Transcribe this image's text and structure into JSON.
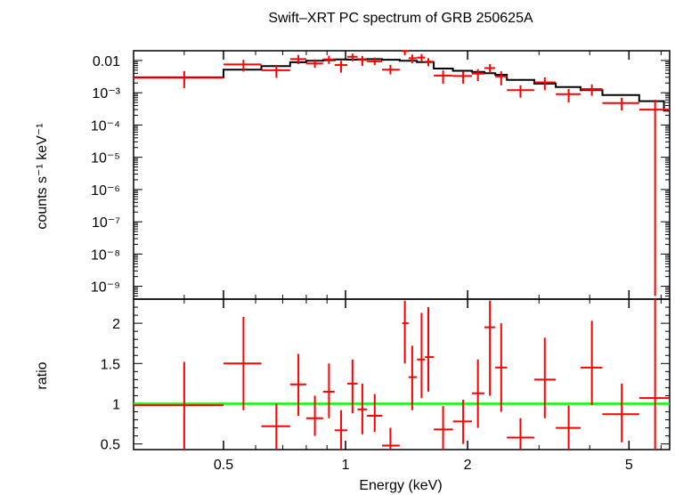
{
  "chart_data": [
    {
      "type": "scatter",
      "panel": "spectrum",
      "title": "Swift–XRT PC spectrum of GRB 250625A",
      "xlabel": "",
      "ylabel": "counts s⁻¹ keV⁻¹",
      "x_scale": "log",
      "y_scale": "log",
      "xlim": [
        0.3,
        6.3
      ],
      "ylim": [
        4e-10,
        0.02
      ],
      "y_tick_labels": [
        {
          "value": 0.01,
          "label": "0.01"
        },
        {
          "value": 0.001,
          "label": "10⁻³"
        },
        {
          "value": 0.0001,
          "label": "10⁻⁴"
        },
        {
          "value": 1e-05,
          "label": "10⁻⁵"
        },
        {
          "value": 1e-06,
          "label": "10⁻⁶"
        },
        {
          "value": 1e-07,
          "label": "10⁻⁷"
        },
        {
          "value": 1e-08,
          "label": "10⁻⁸"
        },
        {
          "value": 1e-09,
          "label": "10⁻⁹"
        }
      ],
      "series": [
        {
          "color": "#ff0000",
          "points": [
            {
              "x": 0.4,
              "xlo": 0.3,
              "xhi": 0.5,
              "y": 0.0029,
              "ylo": 0.0014,
              "yhi": 0.0047
            },
            {
              "x": 0.56,
              "xlo": 0.5,
              "xhi": 0.62,
              "y": 0.0075,
              "ylo": 0.0045,
              "yhi": 0.0105
            },
            {
              "x": 0.675,
              "xlo": 0.62,
              "xhi": 0.73,
              "y": 0.005,
              "ylo": 0.0029,
              "yhi": 0.0068
            },
            {
              "x": 0.765,
              "xlo": 0.73,
              "xhi": 0.8,
              "y": 0.011,
              "ylo": 0.0077,
              "yhi": 0.0148
            },
            {
              "x": 0.84,
              "xlo": 0.8,
              "xhi": 0.88,
              "y": 0.008,
              "ylo": 0.0059,
              "yhi": 0.0108
            },
            {
              "x": 0.91,
              "xlo": 0.88,
              "xhi": 0.94,
              "y": 0.0108,
              "ylo": 0.0078,
              "yhi": 0.014
            },
            {
              "x": 0.975,
              "xlo": 0.94,
              "xhi": 1.01,
              "y": 0.0072,
              "ylo": 0.0042,
              "yhi": 0.0098
            },
            {
              "x": 1.04,
              "xlo": 1.01,
              "xhi": 1.07,
              "y": 0.013,
              "ylo": 0.0094,
              "yhi": 0.0163
            },
            {
              "x": 1.1,
              "xlo": 1.07,
              "xhi": 1.13,
              "y": 0.0104,
              "ylo": 0.0068,
              "yhi": 0.0137
            },
            {
              "x": 1.18,
              "xlo": 1.13,
              "xhi": 1.23,
              "y": 0.0094,
              "ylo": 0.0072,
              "yhi": 0.0123
            },
            {
              "x": 1.29,
              "xlo": 1.23,
              "xhi": 1.36,
              "y": 0.0052,
              "ylo": 0.0037,
              "yhi": 0.0073
            },
            {
              "x": 1.4,
              "xlo": 1.38,
              "xhi": 1.43,
              "y": 0.0195,
              "ylo": 0.0145,
              "yhi": 0.0245
            },
            {
              "x": 1.46,
              "xlo": 1.43,
              "xhi": 1.5,
              "y": 0.0117,
              "ylo": 0.0082,
              "yhi": 0.0153
            },
            {
              "x": 1.54,
              "xlo": 1.5,
              "xhi": 1.57,
              "y": 0.0123,
              "ylo": 0.009,
              "yhi": 0.0158
            },
            {
              "x": 1.6,
              "xlo": 1.57,
              "xhi": 1.65,
              "y": 0.0092,
              "ylo": 0.0066,
              "yhi": 0.0118
            },
            {
              "x": 1.74,
              "xlo": 1.65,
              "xhi": 1.84,
              "y": 0.0034,
              "ylo": 0.0019,
              "yhi": 0.0049
            },
            {
              "x": 1.95,
              "xlo": 1.84,
              "xhi": 2.05,
              "y": 0.0033,
              "ylo": 0.0019,
              "yhi": 0.0046
            },
            {
              "x": 2.12,
              "xlo": 2.05,
              "xhi": 2.2,
              "y": 0.0039,
              "ylo": 0.0023,
              "yhi": 0.0054
            },
            {
              "x": 2.27,
              "xlo": 2.2,
              "xhi": 2.34,
              "y": 0.0058,
              "ylo": 0.004,
              "yhi": 0.0077
            },
            {
              "x": 2.42,
              "xlo": 2.34,
              "xhi": 2.5,
              "y": 0.0032,
              "ylo": 0.0017,
              "yhi": 0.0046
            },
            {
              "x": 2.7,
              "xlo": 2.5,
              "xhi": 2.92,
              "y": 0.0012,
              "ylo": 0.0007,
              "yhi": 0.0017
            },
            {
              "x": 3.1,
              "xlo": 2.92,
              "xhi": 3.3,
              "y": 0.0021,
              "ylo": 0.0012,
              "yhi": 0.003
            },
            {
              "x": 3.55,
              "xlo": 3.3,
              "xhi": 3.8,
              "y": 0.0009,
              "ylo": 0.0005,
              "yhi": 0.0013
            },
            {
              "x": 4.05,
              "xlo": 3.8,
              "xhi": 4.3,
              "y": 0.0013,
              "ylo": 0.0008,
              "yhi": 0.0018
            },
            {
              "x": 4.8,
              "xlo": 4.3,
              "xhi": 5.3,
              "y": 0.00048,
              "ylo": 0.00028,
              "yhi": 0.0007
            },
            {
              "x": 5.8,
              "xlo": 5.3,
              "xhi": 6.3,
              "y": 0.0003,
              "ylo": 5e-10,
              "yhi": 0.0006
            }
          ]
        }
      ],
      "model": {
        "color": "#000000",
        "steps": [
          {
            "xlo": 0.3,
            "xhi": 0.5,
            "y": 0.003
          },
          {
            "xlo": 0.5,
            "xhi": 0.62,
            "y": 0.0052
          },
          {
            "xlo": 0.62,
            "xhi": 0.73,
            "y": 0.0067
          },
          {
            "xlo": 0.73,
            "xhi": 0.8,
            "y": 0.0088
          },
          {
            "xlo": 0.8,
            "xhi": 0.88,
            "y": 0.0098
          },
          {
            "xlo": 0.88,
            "xhi": 0.94,
            "y": 0.0102
          },
          {
            "xlo": 0.94,
            "xhi": 1.01,
            "y": 0.0107
          },
          {
            "xlo": 1.01,
            "xhi": 1.07,
            "y": 0.0106
          },
          {
            "xlo": 1.07,
            "xhi": 1.13,
            "y": 0.0109
          },
          {
            "xlo": 1.13,
            "xhi": 1.23,
            "y": 0.011
          },
          {
            "xlo": 1.23,
            "xhi": 1.36,
            "y": 0.0105
          },
          {
            "xlo": 1.36,
            "xhi": 1.5,
            "y": 0.0098
          },
          {
            "xlo": 1.5,
            "xhi": 1.65,
            "y": 0.0089
          },
          {
            "xlo": 1.65,
            "xhi": 1.84,
            "y": 0.0056
          },
          {
            "xlo": 1.84,
            "xhi": 2.05,
            "y": 0.0048
          },
          {
            "xlo": 2.05,
            "xhi": 2.2,
            "y": 0.0044
          },
          {
            "xlo": 2.2,
            "xhi": 2.34,
            "y": 0.004
          },
          {
            "xlo": 2.34,
            "xhi": 2.5,
            "y": 0.0036
          },
          {
            "xlo": 2.5,
            "xhi": 2.92,
            "y": 0.0025
          },
          {
            "xlo": 2.92,
            "xhi": 3.3,
            "y": 0.0019
          },
          {
            "xlo": 3.3,
            "xhi": 3.8,
            "y": 0.0015
          },
          {
            "xlo": 3.8,
            "xhi": 4.3,
            "y": 0.0012
          },
          {
            "xlo": 4.3,
            "xhi": 5.3,
            "y": 0.00085
          },
          {
            "xlo": 5.3,
            "xhi": 6.1,
            "y": 0.00055
          },
          {
            "xlo": 6.1,
            "xhi": 6.3,
            "y": 0.00028
          }
        ]
      }
    },
    {
      "type": "scatter",
      "panel": "ratio",
      "xlabel": "Energy (keV)",
      "ylabel": "ratio",
      "x_scale": "log",
      "y_scale": "linear",
      "xlim": [
        0.3,
        6.3
      ],
      "ylim": [
        0.43,
        2.3
      ],
      "x_ticks": [
        {
          "value": 0.5,
          "label": "0.5"
        },
        {
          "value": 1,
          "label": "1"
        },
        {
          "value": 2,
          "label": "2"
        },
        {
          "value": 5,
          "label": "5"
        }
      ],
      "y_ticks": [
        {
          "value": 0.5,
          "label": "0.5"
        },
        {
          "value": 1,
          "label": "1"
        },
        {
          "value": 1.5,
          "label": "1.5"
        },
        {
          "value": 2,
          "label": "2"
        }
      ],
      "reference_line": {
        "y": 1,
        "color": "#00ff00"
      },
      "series": [
        {
          "color": "#ff0000",
          "points": [
            {
              "x": 0.4,
              "xlo": 0.3,
              "xhi": 0.5,
              "y": 0.98,
              "ylo": 0.43,
              "yhi": 1.52
            },
            {
              "x": 0.56,
              "xlo": 0.5,
              "xhi": 0.62,
              "y": 1.5,
              "ylo": 0.92,
              "yhi": 2.08
            },
            {
              "x": 0.675,
              "xlo": 0.62,
              "xhi": 0.73,
              "y": 0.72,
              "ylo": 0.43,
              "yhi": 1.0
            },
            {
              "x": 0.765,
              "xlo": 0.73,
              "xhi": 0.8,
              "y": 1.24,
              "ylo": 0.85,
              "yhi": 1.62
            },
            {
              "x": 0.84,
              "xlo": 0.8,
              "xhi": 0.88,
              "y": 0.82,
              "ylo": 0.6,
              "yhi": 1.1
            },
            {
              "x": 0.91,
              "xlo": 0.88,
              "xhi": 0.94,
              "y": 1.15,
              "ylo": 0.82,
              "yhi": 1.5
            },
            {
              "x": 0.975,
              "xlo": 0.94,
              "xhi": 1.01,
              "y": 0.67,
              "ylo": 0.43,
              "yhi": 0.92
            },
            {
              "x": 1.04,
              "xlo": 1.01,
              "xhi": 1.07,
              "y": 1.25,
              "ylo": 0.88,
              "yhi": 1.55
            },
            {
              "x": 1.1,
              "xlo": 1.07,
              "xhi": 1.13,
              "y": 0.93,
              "ylo": 0.62,
              "yhi": 1.25
            },
            {
              "x": 1.18,
              "xlo": 1.13,
              "xhi": 1.23,
              "y": 0.85,
              "ylo": 0.65,
              "yhi": 1.12
            },
            {
              "x": 1.29,
              "xlo": 1.23,
              "xhi": 1.36,
              "y": 0.48,
              "ylo": 0.43,
              "yhi": 0.7
            },
            {
              "x": 1.4,
              "xlo": 1.38,
              "xhi": 1.43,
              "y": 2.0,
              "ylo": 1.5,
              "yhi": 2.28
            },
            {
              "x": 1.46,
              "xlo": 1.43,
              "xhi": 1.5,
              "y": 1.33,
              "ylo": 0.92,
              "yhi": 1.72
            },
            {
              "x": 1.54,
              "xlo": 1.5,
              "xhi": 1.57,
              "y": 1.55,
              "ylo": 1.07,
              "yhi": 2.13
            },
            {
              "x": 1.6,
              "xlo": 1.57,
              "xhi": 1.65,
              "y": 1.58,
              "ylo": 1.15,
              "yhi": 2.2
            },
            {
              "x": 1.74,
              "xlo": 1.65,
              "xhi": 1.84,
              "y": 0.68,
              "ylo": 0.43,
              "yhi": 0.97
            },
            {
              "x": 1.95,
              "xlo": 1.84,
              "xhi": 2.05,
              "y": 0.78,
              "ylo": 0.5,
              "yhi": 1.05
            },
            {
              "x": 2.12,
              "xlo": 2.05,
              "xhi": 2.2,
              "y": 1.13,
              "ylo": 0.7,
              "yhi": 1.55
            },
            {
              "x": 2.27,
              "xlo": 2.2,
              "xhi": 2.34,
              "y": 1.95,
              "ylo": 1.1,
              "yhi": 2.28
            },
            {
              "x": 2.42,
              "xlo": 2.34,
              "xhi": 2.5,
              "y": 1.45,
              "ylo": 0.9,
              "yhi": 2.0
            },
            {
              "x": 2.7,
              "xlo": 2.5,
              "xhi": 2.92,
              "y": 0.58,
              "ylo": 0.43,
              "yhi": 0.82
            },
            {
              "x": 3.1,
              "xlo": 2.92,
              "xhi": 3.3,
              "y": 1.3,
              "ylo": 0.82,
              "yhi": 1.82
            },
            {
              "x": 3.55,
              "xlo": 3.3,
              "xhi": 3.8,
              "y": 0.7,
              "ylo": 0.43,
              "yhi": 0.98
            },
            {
              "x": 4.05,
              "xlo": 3.8,
              "xhi": 4.3,
              "y": 1.45,
              "ylo": 0.98,
              "yhi": 2.03
            },
            {
              "x": 4.8,
              "xlo": 4.3,
              "xhi": 5.3,
              "y": 0.87,
              "ylo": 0.52,
              "yhi": 1.25
            },
            {
              "x": 5.8,
              "xlo": 5.3,
              "xhi": 6.3,
              "y": 1.07,
              "ylo": 0.43,
              "yhi": 2.3
            }
          ]
        }
      ]
    }
  ]
}
